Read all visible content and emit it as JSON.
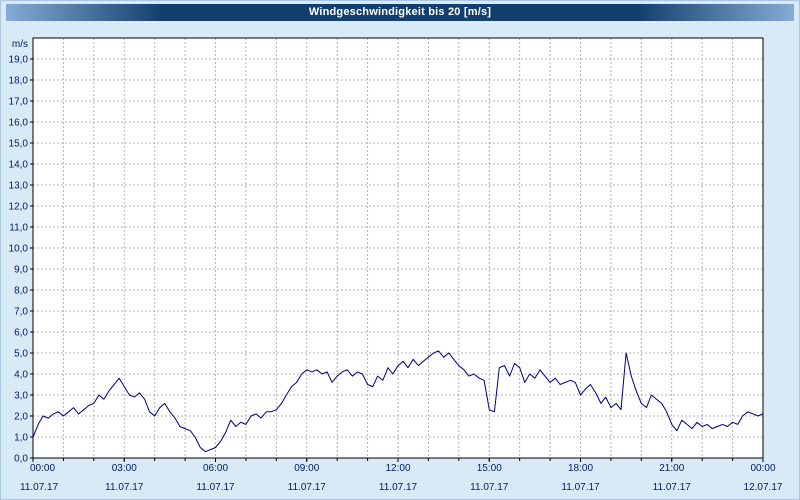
{
  "title_bar": {
    "text": "Windgeschwindigkeit bis 20 [m/s]",
    "text_color": "#ffffff",
    "bg_center": "#123f6d",
    "bg_edge": "#86abd4"
  },
  "page": {
    "background": "#d9eaf7"
  },
  "chart_data": {
    "type": "line",
    "title": "Windgeschwindigkeit bis 20 [m/s]",
    "ylabel": "m/s",
    "xlabel": "",
    "ylim": [
      0,
      20
    ],
    "xlim": [
      0,
      24
    ],
    "ytick_step": 1,
    "x_minor_step_hours": 1,
    "grid": true,
    "legend": "none",
    "line_color": "#000080",
    "grid_color": "#b3b3b3",
    "axis_text_color": "#001a66",
    "plot_bg": "#ffffff",
    "ytick_labels": [
      "0,0",
      "1,0",
      "2,0",
      "3,0",
      "4,0",
      "5,0",
      "6,0",
      "7,0",
      "8,0",
      "9,0",
      "10,0",
      "11,0",
      "12,0",
      "13,0",
      "14,0",
      "15,0",
      "16,0",
      "17,0",
      "18,0",
      "19,0"
    ],
    "x_major_ticks": [
      {
        "t": 0,
        "time": "00:00",
        "date": "11.07.17"
      },
      {
        "t": 3,
        "time": "03:00",
        "date": "11.07.17"
      },
      {
        "t": 6,
        "time": "06:00",
        "date": "11.07.17"
      },
      {
        "t": 9,
        "time": "09:00",
        "date": "11.07.17"
      },
      {
        "t": 12,
        "time": "12:00",
        "date": "11.07.17"
      },
      {
        "t": 15,
        "time": "15:00",
        "date": "11.07.17"
      },
      {
        "t": 18,
        "time": "18:00",
        "date": "11.07.17"
      },
      {
        "t": 21,
        "time": "21:00",
        "date": "11.07.17"
      },
      {
        "t": 24,
        "time": "00:00",
        "date": "12.07.17"
      }
    ],
    "points": [
      [
        0.0,
        1.0
      ],
      [
        0.17,
        1.6
      ],
      [
        0.33,
        2.0
      ],
      [
        0.5,
        1.9
      ],
      [
        0.67,
        2.1
      ],
      [
        0.83,
        2.2
      ],
      [
        1.0,
        2.0
      ],
      [
        1.17,
        2.2
      ],
      [
        1.33,
        2.4
      ],
      [
        1.5,
        2.1
      ],
      [
        1.67,
        2.3
      ],
      [
        1.83,
        2.5
      ],
      [
        2.0,
        2.6
      ],
      [
        2.17,
        3.0
      ],
      [
        2.33,
        2.8
      ],
      [
        2.5,
        3.2
      ],
      [
        2.67,
        3.5
      ],
      [
        2.83,
        3.8
      ],
      [
        3.0,
        3.4
      ],
      [
        3.17,
        3.0
      ],
      [
        3.33,
        2.9
      ],
      [
        3.5,
        3.1
      ],
      [
        3.67,
        2.8
      ],
      [
        3.83,
        2.2
      ],
      [
        4.0,
        2.0
      ],
      [
        4.17,
        2.4
      ],
      [
        4.33,
        2.6
      ],
      [
        4.5,
        2.2
      ],
      [
        4.67,
        1.9
      ],
      [
        4.83,
        1.5
      ],
      [
        5.0,
        1.4
      ],
      [
        5.17,
        1.3
      ],
      [
        5.33,
        1.0
      ],
      [
        5.5,
        0.5
      ],
      [
        5.67,
        0.3
      ],
      [
        5.83,
        0.4
      ],
      [
        6.0,
        0.5
      ],
      [
        6.17,
        0.8
      ],
      [
        6.33,
        1.2
      ],
      [
        6.5,
        1.8
      ],
      [
        6.67,
        1.5
      ],
      [
        6.83,
        1.7
      ],
      [
        7.0,
        1.6
      ],
      [
        7.17,
        2.0
      ],
      [
        7.33,
        2.1
      ],
      [
        7.5,
        1.9
      ],
      [
        7.67,
        2.2
      ],
      [
        7.83,
        2.2
      ],
      [
        8.0,
        2.3
      ],
      [
        8.17,
        2.6
      ],
      [
        8.33,
        3.0
      ],
      [
        8.5,
        3.4
      ],
      [
        8.67,
        3.6
      ],
      [
        8.83,
        4.0
      ],
      [
        9.0,
        4.2
      ],
      [
        9.17,
        4.1
      ],
      [
        9.33,
        4.2
      ],
      [
        9.5,
        4.0
      ],
      [
        9.67,
        4.1
      ],
      [
        9.83,
        3.6
      ],
      [
        10.0,
        3.9
      ],
      [
        10.17,
        4.1
      ],
      [
        10.33,
        4.2
      ],
      [
        10.5,
        3.9
      ],
      [
        10.67,
        4.1
      ],
      [
        10.83,
        4.0
      ],
      [
        11.0,
        3.5
      ],
      [
        11.17,
        3.4
      ],
      [
        11.33,
        3.9
      ],
      [
        11.5,
        3.7
      ],
      [
        11.67,
        4.3
      ],
      [
        11.83,
        4.0
      ],
      [
        12.0,
        4.4
      ],
      [
        12.17,
        4.6
      ],
      [
        12.33,
        4.3
      ],
      [
        12.5,
        4.7
      ],
      [
        12.67,
        4.4
      ],
      [
        12.83,
        4.6
      ],
      [
        13.0,
        4.8
      ],
      [
        13.17,
        5.0
      ],
      [
        13.33,
        5.1
      ],
      [
        13.5,
        4.8
      ],
      [
        13.67,
        5.0
      ],
      [
        13.83,
        4.7
      ],
      [
        14.0,
        4.4
      ],
      [
        14.17,
        4.2
      ],
      [
        14.33,
        3.9
      ],
      [
        14.5,
        4.0
      ],
      [
        14.67,
        3.8
      ],
      [
        14.83,
        3.7
      ],
      [
        15.0,
        2.3
      ],
      [
        15.17,
        2.2
      ],
      [
        15.33,
        4.3
      ],
      [
        15.5,
        4.4
      ],
      [
        15.67,
        3.9
      ],
      [
        15.83,
        4.5
      ],
      [
        16.0,
        4.3
      ],
      [
        16.17,
        3.6
      ],
      [
        16.33,
        4.0
      ],
      [
        16.5,
        3.8
      ],
      [
        16.67,
        4.2
      ],
      [
        16.83,
        3.9
      ],
      [
        17.0,
        3.6
      ],
      [
        17.17,
        3.8
      ],
      [
        17.33,
        3.5
      ],
      [
        17.5,
        3.6
      ],
      [
        17.67,
        3.7
      ],
      [
        17.83,
        3.6
      ],
      [
        18.0,
        3.0
      ],
      [
        18.17,
        3.3
      ],
      [
        18.33,
        3.5
      ],
      [
        18.5,
        3.1
      ],
      [
        18.67,
        2.6
      ],
      [
        18.83,
        2.9
      ],
      [
        19.0,
        2.4
      ],
      [
        19.17,
        2.6
      ],
      [
        19.33,
        2.3
      ],
      [
        19.5,
        5.0
      ],
      [
        19.67,
        3.9
      ],
      [
        19.83,
        3.2
      ],
      [
        20.0,
        2.6
      ],
      [
        20.17,
        2.4
      ],
      [
        20.33,
        3.0
      ],
      [
        20.5,
        2.8
      ],
      [
        20.67,
        2.6
      ],
      [
        20.83,
        2.2
      ],
      [
        21.0,
        1.6
      ],
      [
        21.17,
        1.3
      ],
      [
        21.33,
        1.8
      ],
      [
        21.5,
        1.6
      ],
      [
        21.67,
        1.4
      ],
      [
        21.83,
        1.7
      ],
      [
        22.0,
        1.5
      ],
      [
        22.17,
        1.6
      ],
      [
        22.33,
        1.4
      ],
      [
        22.5,
        1.5
      ],
      [
        22.67,
        1.6
      ],
      [
        22.83,
        1.5
      ],
      [
        23.0,
        1.7
      ],
      [
        23.17,
        1.6
      ],
      [
        23.33,
        2.0
      ],
      [
        23.5,
        2.2
      ],
      [
        23.67,
        2.1
      ],
      [
        23.83,
        2.0
      ],
      [
        24.0,
        2.1
      ]
    ]
  }
}
